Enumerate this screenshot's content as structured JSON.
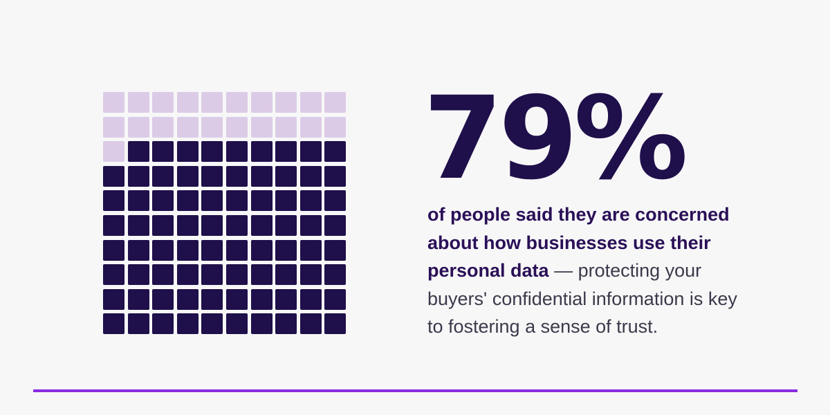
{
  "chart_data": {
    "type": "waffle",
    "total_cells": 100,
    "rows": 10,
    "columns": 10,
    "value_percent": 79,
    "filled_color": "#1f0f4a",
    "empty_color": "#dccbe6"
  },
  "headline": {
    "value": "79%"
  },
  "description": {
    "bold": "of people said they are concerned about how businesses use their personal data",
    "regular": " — protecting your buyers' confidential information is key to fostering a sense of trust."
  },
  "colors": {
    "background": "#f7f7f8",
    "accent_rule": "#8a2be2",
    "headline": "#1f0f4a",
    "bold_text": "#2a1057",
    "body_text": "#3a3a4a"
  }
}
